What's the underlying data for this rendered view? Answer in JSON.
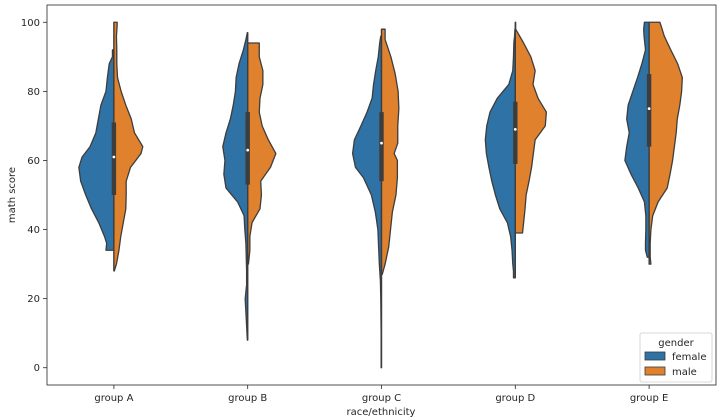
{
  "chart_data": {
    "type": "violin",
    "split": true,
    "xlabel": "race/ethnicity",
    "ylabel": "math score",
    "ylim": [
      -5,
      105
    ],
    "yticks": [
      0,
      20,
      40,
      60,
      80,
      100
    ],
    "categories": [
      "group A",
      "group B",
      "group C",
      "group D",
      "group E"
    ],
    "legend": {
      "title": "gender",
      "placement": "lower-right",
      "entries": [
        {
          "label": "female",
          "color": "#2f72a5"
        },
        {
          "label": "male",
          "color": "#e0822d"
        }
      ]
    },
    "series": [
      {
        "name": "female",
        "color": "#2f72a5",
        "side": "left",
        "groups": [
          {
            "min": 34,
            "max": 92,
            "quartiles": [
              50,
              61,
              71
            ],
            "profile": [
              [
                34,
                0.22
              ],
              [
                36,
                0.2
              ],
              [
                38,
                0.26
              ],
              [
                42,
                0.42
              ],
              [
                46,
                0.62
              ],
              [
                50,
                0.78
              ],
              [
                54,
                0.92
              ],
              [
                58,
                0.97
              ],
              [
                61,
                0.88
              ],
              [
                64,
                0.66
              ],
              [
                68,
                0.5
              ],
              [
                72,
                0.43
              ],
              [
                76,
                0.36
              ],
              [
                80,
                0.22
              ],
              [
                84,
                0.18
              ],
              [
                88,
                0.13
              ],
              [
                90,
                0.04
              ],
              [
                92,
                0.04
              ]
            ]
          },
          {
            "min": 8,
            "max": 97,
            "quartiles": [
              53,
              63,
              74
            ],
            "profile": [
              [
                8,
                0.01
              ],
              [
                12,
                0.03
              ],
              [
                16,
                0.05
              ],
              [
                20,
                0.07
              ],
              [
                24,
                0.03
              ],
              [
                28,
                0.03
              ],
              [
                32,
                0.04
              ],
              [
                36,
                0.05
              ],
              [
                40,
                0.08
              ],
              [
                44,
                0.1
              ],
              [
                48,
                0.28
              ],
              [
                52,
                0.6
              ],
              [
                56,
                0.66
              ],
              [
                60,
                0.63
              ],
              [
                64,
                0.69
              ],
              [
                68,
                0.6
              ],
              [
                72,
                0.48
              ],
              [
                76,
                0.4
              ],
              [
                80,
                0.34
              ],
              [
                84,
                0.32
              ],
              [
                88,
                0.24
              ],
              [
                92,
                0.12
              ],
              [
                95,
                0.05
              ],
              [
                97,
                0.01
              ]
            ]
          },
          {
            "min": 0,
            "max": 96,
            "quartiles": [
              54,
              65,
              74
            ],
            "profile": [
              [
                0,
                0.01
              ],
              [
                10,
                0.01
              ],
              [
                20,
                0.02
              ],
              [
                25,
                0.03
              ],
              [
                30,
                0.06
              ],
              [
                35,
                0.08
              ],
              [
                40,
                0.1
              ],
              [
                45,
                0.17
              ],
              [
                50,
                0.28
              ],
              [
                55,
                0.5
              ],
              [
                58,
                0.72
              ],
              [
                62,
                0.8
              ],
              [
                66,
                0.75
              ],
              [
                70,
                0.57
              ],
              [
                74,
                0.4
              ],
              [
                78,
                0.26
              ],
              [
                82,
                0.22
              ],
              [
                86,
                0.16
              ],
              [
                90,
                0.09
              ],
              [
                94,
                0.05
              ],
              [
                96,
                0.02
              ]
            ]
          },
          {
            "min": 26,
            "max": 98,
            "quartiles": [
              59,
              69,
              77
            ],
            "profile": [
              [
                26,
                0.05
              ],
              [
                28,
                0.05
              ],
              [
                30,
                0.07
              ],
              [
                34,
                0.09
              ],
              [
                38,
                0.13
              ],
              [
                42,
                0.22
              ],
              [
                46,
                0.43
              ],
              [
                50,
                0.55
              ],
              [
                54,
                0.65
              ],
              [
                58,
                0.73
              ],
              [
                62,
                0.8
              ],
              [
                66,
                0.83
              ],
              [
                70,
                0.79
              ],
              [
                74,
                0.7
              ],
              [
                78,
                0.5
              ],
              [
                82,
                0.18
              ],
              [
                86,
                0.07
              ],
              [
                90,
                0.05
              ],
              [
                94,
                0.04
              ],
              [
                96,
                0.02
              ],
              [
                98,
                0.01
              ]
            ]
          },
          {
            "min": 32,
            "max": 100,
            "quartiles": [
              64,
              75,
              85
            ],
            "profile": [
              [
                32,
                0.05
              ],
              [
                34,
                0.1
              ],
              [
                36,
                0.1
              ],
              [
                40,
                0.09
              ],
              [
                44,
                0.09
              ],
              [
                48,
                0.13
              ],
              [
                52,
                0.3
              ],
              [
                56,
                0.5
              ],
              [
                60,
                0.67
              ],
              [
                64,
                0.62
              ],
              [
                68,
                0.55
              ],
              [
                72,
                0.62
              ],
              [
                76,
                0.58
              ],
              [
                80,
                0.45
              ],
              [
                84,
                0.32
              ],
              [
                88,
                0.2
              ],
              [
                92,
                0.1
              ],
              [
                96,
                0.14
              ],
              [
                98,
                0.15
              ],
              [
                100,
                0.13
              ]
            ]
          }
        ]
      },
      {
        "name": "male",
        "color": "#e0822d",
        "side": "right",
        "groups": [
          {
            "min": 28,
            "max": 100,
            "quartiles": [
              50,
              61,
              71
            ],
            "profile": [
              [
                28,
                0.01
              ],
              [
                30,
                0.07
              ],
              [
                34,
                0.14
              ],
              [
                38,
                0.19
              ],
              [
                42,
                0.26
              ],
              [
                46,
                0.33
              ],
              [
                50,
                0.34
              ],
              [
                54,
                0.34
              ],
              [
                58,
                0.46
              ],
              [
                62,
                0.75
              ],
              [
                64,
                0.8
              ],
              [
                68,
                0.57
              ],
              [
                72,
                0.48
              ],
              [
                76,
                0.33
              ],
              [
                80,
                0.2
              ],
              [
                84,
                0.1
              ],
              [
                88,
                0.08
              ],
              [
                92,
                0.08
              ],
              [
                96,
                0.07
              ],
              [
                99,
                0.09
              ],
              [
                100,
                0.09
              ]
            ]
          },
          {
            "min": 30,
            "max": 94,
            "quartiles": [
              53,
              63,
              74
            ],
            "profile": [
              [
                30,
                0.02
              ],
              [
                34,
                0.06
              ],
              [
                38,
                0.06
              ],
              [
                42,
                0.12
              ],
              [
                46,
                0.34
              ],
              [
                50,
                0.38
              ],
              [
                54,
                0.36
              ],
              [
                58,
                0.63
              ],
              [
                62,
                0.78
              ],
              [
                66,
                0.57
              ],
              [
                70,
                0.4
              ],
              [
                74,
                0.32
              ],
              [
                78,
                0.34
              ],
              [
                82,
                0.42
              ],
              [
                86,
                0.42
              ],
              [
                90,
                0.32
              ],
              [
                94,
                0.32
              ]
            ]
          },
          {
            "min": 27,
            "max": 98,
            "quartiles": [
              54,
              65,
              74
            ],
            "profile": [
              [
                27,
                0.02
              ],
              [
                30,
                0.1
              ],
              [
                35,
                0.2
              ],
              [
                40,
                0.25
              ],
              [
                45,
                0.3
              ],
              [
                50,
                0.4
              ],
              [
                55,
                0.44
              ],
              [
                60,
                0.44
              ],
              [
                62,
                0.35
              ],
              [
                65,
                0.45
              ],
              [
                70,
                0.45
              ],
              [
                75,
                0.48
              ],
              [
                80,
                0.46
              ],
              [
                85,
                0.38
              ],
              [
                90,
                0.26
              ],
              [
                95,
                0.1
              ],
              [
                98,
                0.1
              ]
            ]
          },
          {
            "min": 39,
            "max": 100,
            "quartiles": [
              59,
              69,
              77
            ],
            "profile": [
              [
                39,
                0.2
              ],
              [
                42,
                0.23
              ],
              [
                46,
                0.27
              ],
              [
                50,
                0.3
              ],
              [
                54,
                0.38
              ],
              [
                58,
                0.45
              ],
              [
                62,
                0.5
              ],
              [
                66,
                0.55
              ],
              [
                70,
                0.83
              ],
              [
                74,
                0.86
              ],
              [
                78,
                0.63
              ],
              [
                82,
                0.49
              ],
              [
                86,
                0.55
              ],
              [
                90,
                0.43
              ],
              [
                94,
                0.23
              ],
              [
                98,
                0.01
              ],
              [
                100,
                0.01
              ]
            ]
          },
          {
            "min": 30,
            "max": 100,
            "quartiles": [
              64,
              75,
              85
            ],
            "profile": [
              [
                30,
                0.05
              ],
              [
                32,
                0.03
              ],
              [
                36,
                0.03
              ],
              [
                40,
                0.05
              ],
              [
                44,
                0.1
              ],
              [
                48,
                0.25
              ],
              [
                52,
                0.5
              ],
              [
                56,
                0.58
              ],
              [
                60,
                0.65
              ],
              [
                64,
                0.7
              ],
              [
                68,
                0.75
              ],
              [
                72,
                0.78
              ],
              [
                76,
                0.85
              ],
              [
                80,
                0.9
              ],
              [
                84,
                0.92
              ],
              [
                88,
                0.79
              ],
              [
                92,
                0.6
              ],
              [
                96,
                0.42
              ],
              [
                100,
                0.3
              ]
            ]
          }
        ]
      }
    ]
  }
}
